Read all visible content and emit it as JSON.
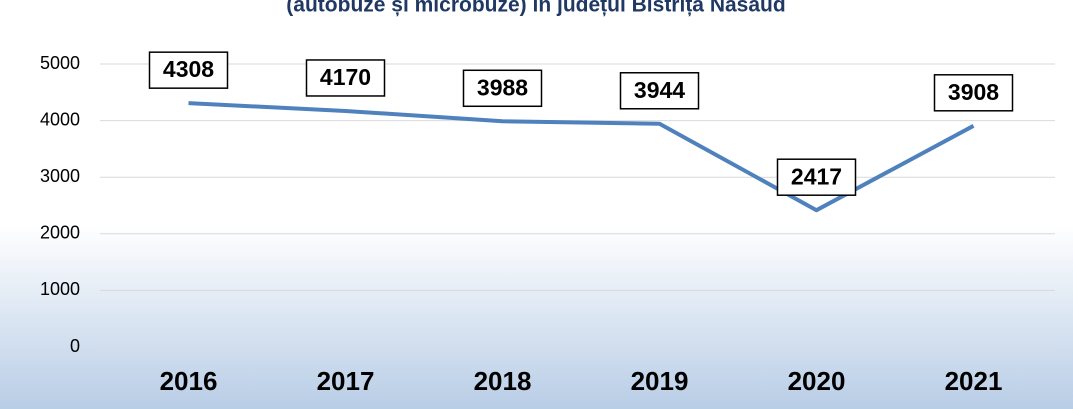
{
  "chart_data": {
    "type": "line",
    "title": "(autobuze și microbuze) în județul Bistrița Năsăud",
    "categories": [
      "2016",
      "2017",
      "2018",
      "2019",
      "2020",
      "2021"
    ],
    "series": [
      {
        "name": "Autobuze și microbuze",
        "color": "#4f81bd",
        "values": [
          4308,
          4170,
          3988,
          3944,
          2417,
          3908
        ]
      }
    ],
    "ylim": [
      0,
      5000
    ],
    "yticks": [
      0,
      1000,
      2000,
      3000,
      4000,
      5000
    ],
    "grid": true
  }
}
